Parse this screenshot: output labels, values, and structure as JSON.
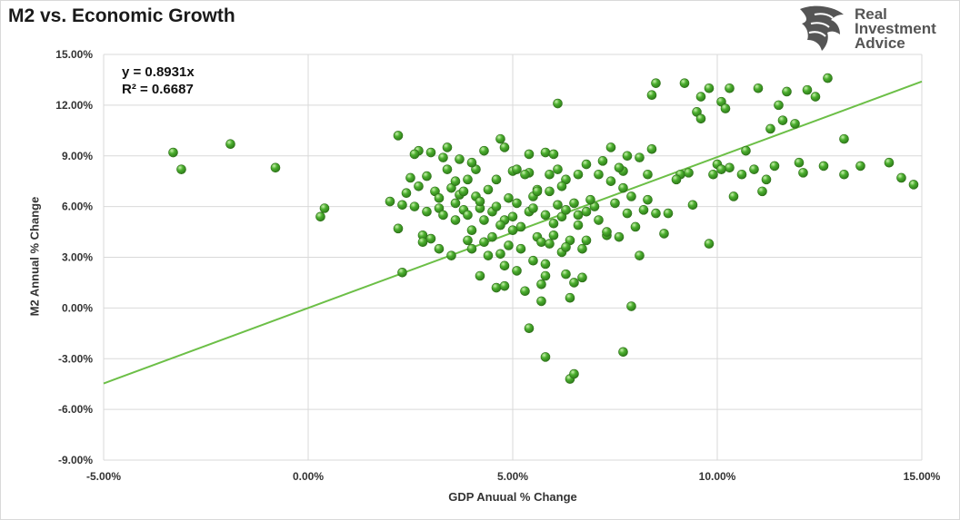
{
  "title": "M2 vs. Economic Growth",
  "logo": {
    "line1": "Real",
    "line2": "Investment",
    "line3": "Advice",
    "icon": "eagle-head-icon"
  },
  "equation": {
    "line1": "y = 0.8931x",
    "line2": "R² = 0.6687"
  },
  "colors": {
    "point": "#4caf2f",
    "point_light": "#a9e38a",
    "point_dark": "#2e7d1a",
    "trendline": "#6cbf47",
    "grid": "#d9d9d9",
    "text": "#333333"
  },
  "chart_data": {
    "type": "scatter",
    "title": "M2 vs. Economic Growth",
    "xlabel": "GDP Anuual % Change",
    "ylabel": "M2 Annual % Change",
    "xlim": [
      -5,
      15
    ],
    "ylim": [
      -9,
      15
    ],
    "xticks": [
      -5,
      0,
      5,
      10,
      15
    ],
    "yticks": [
      -9,
      -6,
      -3,
      0,
      3,
      6,
      9,
      12,
      15
    ],
    "xtick_labels": [
      "-5.00%",
      "0.00%",
      "5.00%",
      "10.00%",
      "15.00%"
    ],
    "ytick_labels": [
      "-9.00%",
      "-6.00%",
      "-3.00%",
      "0.00%",
      "3.00%",
      "6.00%",
      "9.00%",
      "12.00%",
      "15.00%"
    ],
    "grid": "vertical and horizontal",
    "trendline": {
      "slope": 0.8931,
      "intercept": 0,
      "r_squared": 0.6687
    },
    "points": [
      [
        -3.3,
        9.2
      ],
      [
        -3.1,
        8.2
      ],
      [
        -1.9,
        9.7
      ],
      [
        -0.8,
        8.3
      ],
      [
        0.3,
        5.4
      ],
      [
        0.4,
        5.9
      ],
      [
        2.2,
        10.2
      ],
      [
        2.2,
        4.7
      ],
      [
        2.3,
        2.1
      ],
      [
        2.3,
        6.1
      ],
      [
        2.4,
        6.8
      ],
      [
        2.5,
        7.7
      ],
      [
        2.6,
        6.0
      ],
      [
        2.7,
        7.2
      ],
      [
        2.7,
        9.3
      ],
      [
        2.8,
        4.3
      ],
      [
        2.8,
        3.9
      ],
      [
        2.9,
        5.7
      ],
      [
        2.9,
        7.8
      ],
      [
        3.0,
        9.2
      ],
      [
        3.1,
        6.9
      ],
      [
        3.2,
        6.5
      ],
      [
        3.2,
        3.5
      ],
      [
        3.2,
        5.9
      ],
      [
        3.3,
        8.9
      ],
      [
        3.3,
        5.5
      ],
      [
        3.4,
        8.2
      ],
      [
        3.4,
        9.5
      ],
      [
        3.5,
        3.1
      ],
      [
        3.5,
        7.1
      ],
      [
        3.6,
        6.2
      ],
      [
        3.6,
        7.5
      ],
      [
        3.7,
        6.7
      ],
      [
        3.7,
        8.8
      ],
      [
        3.8,
        5.8
      ],
      [
        3.9,
        4.0
      ],
      [
        3.9,
        5.5
      ],
      [
        3.9,
        7.6
      ],
      [
        4.0,
        3.5
      ],
      [
        4.0,
        4.6
      ],
      [
        4.1,
        6.6
      ],
      [
        4.1,
        8.2
      ],
      [
        4.2,
        5.9
      ],
      [
        4.2,
        1.9
      ],
      [
        4.3,
        3.9
      ],
      [
        4.3,
        9.3
      ],
      [
        4.3,
        5.2
      ],
      [
        4.4,
        3.1
      ],
      [
        4.5,
        5.7
      ],
      [
        4.5,
        4.2
      ],
      [
        4.6,
        7.6
      ],
      [
        4.6,
        1.2
      ],
      [
        4.7,
        10.0
      ],
      [
        4.7,
        3.2
      ],
      [
        4.8,
        9.5
      ],
      [
        4.8,
        5.2
      ],
      [
        4.8,
        2.5
      ],
      [
        4.8,
        1.3
      ],
      [
        4.9,
        6.5
      ],
      [
        4.9,
        3.7
      ],
      [
        5.0,
        8.1
      ],
      [
        5.0,
        5.4
      ],
      [
        5.1,
        2.2
      ],
      [
        5.1,
        6.2
      ],
      [
        5.1,
        8.2
      ],
      [
        5.2,
        4.8
      ],
      [
        5.2,
        3.5
      ],
      [
        5.3,
        1.0
      ],
      [
        5.4,
        5.7
      ],
      [
        5.4,
        8.0
      ],
      [
        5.4,
        9.1
      ],
      [
        5.5,
        2.8
      ],
      [
        5.5,
        6.6
      ],
      [
        5.6,
        4.2
      ],
      [
        5.6,
        7.0
      ],
      [
        5.7,
        1.4
      ],
      [
        5.7,
        3.9
      ],
      [
        5.7,
        0.4
      ],
      [
        5.8,
        5.5
      ],
      [
        5.8,
        9.2
      ],
      [
        5.8,
        2.6
      ],
      [
        5.9,
        3.8
      ],
      [
        5.9,
        6.9
      ],
      [
        5.9,
        7.9
      ],
      [
        6.0,
        5.0
      ],
      [
        6.0,
        4.3
      ],
      [
        6.1,
        8.2
      ],
      [
        6.1,
        12.1
      ],
      [
        6.1,
        6.1
      ],
      [
        6.2,
        5.4
      ],
      [
        6.2,
        3.3
      ],
      [
        6.3,
        7.6
      ],
      [
        6.3,
        2.0
      ],
      [
        6.3,
        5.8
      ],
      [
        6.4,
        0.6
      ],
      [
        6.4,
        4.0
      ],
      [
        6.5,
        1.5
      ],
      [
        6.5,
        6.2
      ],
      [
        6.6,
        5.5
      ],
      [
        6.6,
        4.9
      ],
      [
        6.7,
        3.5
      ],
      [
        6.8,
        8.5
      ],
      [
        6.8,
        4.0
      ],
      [
        7.0,
        6.0
      ],
      [
        7.1,
        5.2
      ],
      [
        7.1,
        7.9
      ],
      [
        7.2,
        8.7
      ],
      [
        7.3,
        4.3
      ],
      [
        7.4,
        7.5
      ],
      [
        7.4,
        9.5
      ],
      [
        7.5,
        6.2
      ],
      [
        7.6,
        4.2
      ],
      [
        7.7,
        7.1
      ],
      [
        7.7,
        8.1
      ],
      [
        7.8,
        5.6
      ],
      [
        7.8,
        9.0
      ],
      [
        7.9,
        0.1
      ],
      [
        7.9,
        6.6
      ],
      [
        8.0,
        4.8
      ],
      [
        8.1,
        8.9
      ],
      [
        8.1,
        3.1
      ],
      [
        8.2,
        5.8
      ],
      [
        8.3,
        7.9
      ],
      [
        8.3,
        6.4
      ],
      [
        8.4,
        12.6
      ],
      [
        8.5,
        13.3
      ],
      [
        8.5,
        5.6
      ],
      [
        8.7,
        4.4
      ],
      [
        8.8,
        5.6
      ],
      [
        9.1,
        7.9
      ],
      [
        9.2,
        13.3
      ],
      [
        9.3,
        8.0
      ],
      [
        9.4,
        6.1
      ],
      [
        9.5,
        11.6
      ],
      [
        9.6,
        11.2
      ],
      [
        9.6,
        12.5
      ],
      [
        9.8,
        13.0
      ],
      [
        9.8,
        3.8
      ],
      [
        9.9,
        7.9
      ],
      [
        10.0,
        8.5
      ],
      [
        10.1,
        12.2
      ],
      [
        10.2,
        11.8
      ],
      [
        10.3,
        13.0
      ],
      [
        10.3,
        8.3
      ],
      [
        10.4,
        6.6
      ],
      [
        10.6,
        7.9
      ],
      [
        10.7,
        9.3
      ],
      [
        10.9,
        8.2
      ],
      [
        11.0,
        13.0
      ],
      [
        11.1,
        6.9
      ],
      [
        11.2,
        7.6
      ],
      [
        11.3,
        10.6
      ],
      [
        11.4,
        8.4
      ],
      [
        11.5,
        12.0
      ],
      [
        11.6,
        11.1
      ],
      [
        11.7,
        12.8
      ],
      [
        11.9,
        10.9
      ],
      [
        12.0,
        8.6
      ],
      [
        12.1,
        8.0
      ],
      [
        12.2,
        12.9
      ],
      [
        12.4,
        12.5
      ],
      [
        12.6,
        8.4
      ],
      [
        12.7,
        13.6
      ],
      [
        13.1,
        10.0
      ],
      [
        13.1,
        7.9
      ],
      [
        13.5,
        8.4
      ],
      [
        14.2,
        8.6
      ],
      [
        14.5,
        7.7
      ],
      [
        14.8,
        7.3
      ],
      [
        2.0,
        6.3
      ],
      [
        2.6,
        9.1
      ],
      [
        3.0,
        4.1
      ],
      [
        3.6,
        5.2
      ],
      [
        4.0,
        8.6
      ],
      [
        4.4,
        7.0
      ],
      [
        4.6,
        6.0
      ],
      [
        5.3,
        7.9
      ],
      [
        5.6,
        6.9
      ],
      [
        6.0,
        9.1
      ],
      [
        6.2,
        7.2
      ],
      [
        6.6,
        7.9
      ],
      [
        6.9,
        6.4
      ],
      [
        7.3,
        4.5
      ],
      [
        7.6,
        8.3
      ],
      [
        5.0,
        4.6
      ],
      [
        4.2,
        6.3
      ],
      [
        5.8,
        1.9
      ],
      [
        6.3,
        3.6
      ],
      [
        3.8,
        6.9
      ],
      [
        5.5,
        5.9
      ],
      [
        6.8,
        5.7
      ],
      [
        4.7,
        4.9
      ],
      [
        8.4,
        9.4
      ],
      [
        9.0,
        7.6
      ],
      [
        10.1,
        8.2
      ],
      [
        5.8,
        -2.9
      ],
      [
        6.4,
        -4.2
      ],
      [
        6.5,
        -3.9
      ],
      [
        7.7,
        -2.6
      ],
      [
        5.4,
        -1.2
      ],
      [
        6.7,
        1.8
      ]
    ]
  },
  "xtick_labels": [
    "-5.00%",
    "0.00%",
    "5.00%",
    "10.00%",
    "15.00%"
  ],
  "ytick_labels": [
    "-9.00%",
    "-6.00%",
    "-3.00%",
    "0.00%",
    "3.00%",
    "6.00%",
    "9.00%",
    "12.00%",
    "15.00%"
  ]
}
